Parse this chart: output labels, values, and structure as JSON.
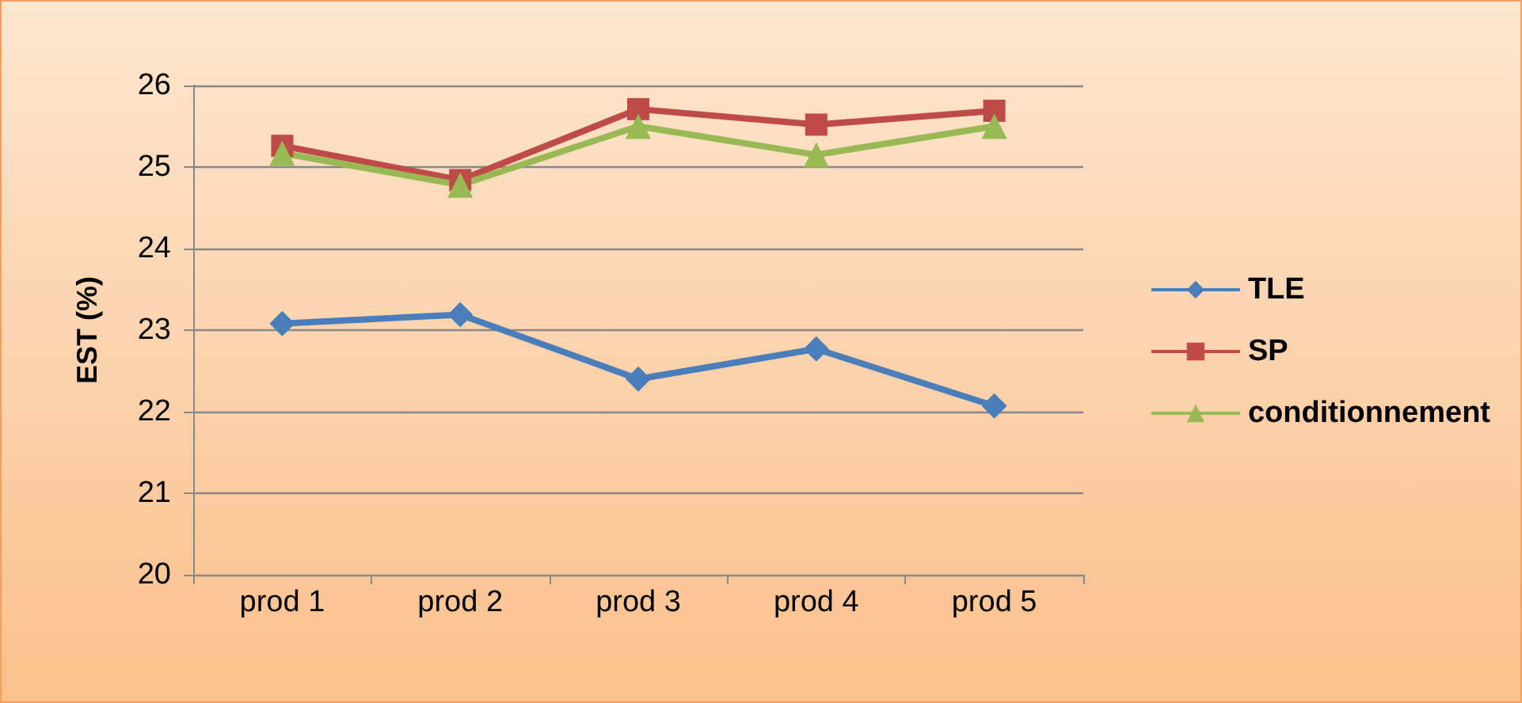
{
  "chart_data": {
    "type": "line",
    "ylabel": "EST (%)",
    "categories": [
      "prod 1",
      "prod 2",
      "prod 3",
      "prod 4",
      "prod 5"
    ],
    "series": [
      {
        "name": "TLE",
        "color": "#4a7ebb",
        "marker": "diamond",
        "values": [
          23.08,
          23.19,
          22.4,
          22.77,
          22.07
        ]
      },
      {
        "name": "SP",
        "color": "#be4b48",
        "marker": "square",
        "values": [
          25.26,
          24.84,
          25.71,
          25.52,
          25.69
        ]
      },
      {
        "name": "conditionnement",
        "color": "#98b954",
        "marker": "triangle",
        "values": [
          25.17,
          24.78,
          25.5,
          25.15,
          25.5
        ]
      }
    ],
    "ylim": [
      20,
      26
    ],
    "yticks": [
      20,
      21,
      22,
      23,
      24,
      25,
      26
    ],
    "grid": "y",
    "legend": "right",
    "line_style": "solid"
  }
}
